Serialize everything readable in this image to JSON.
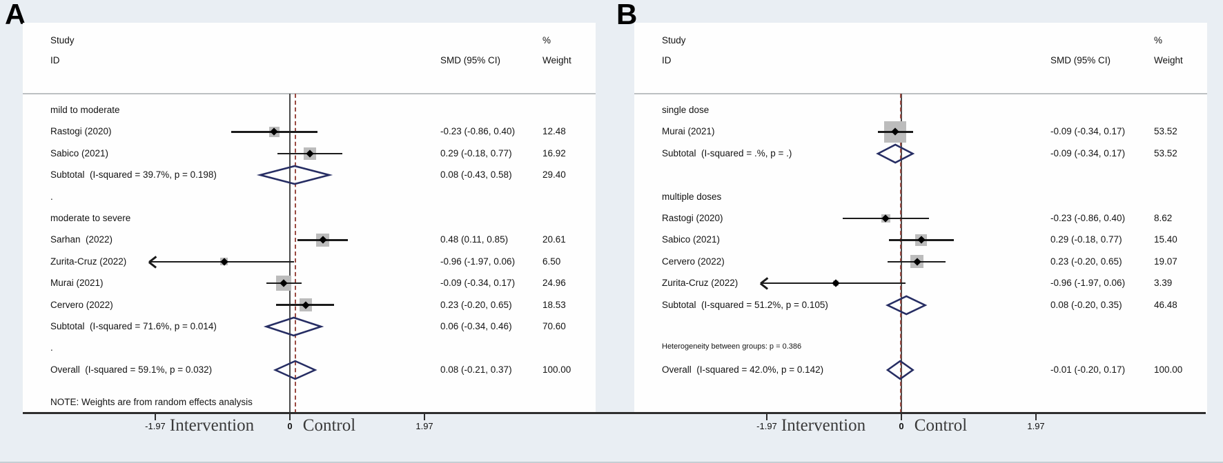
{
  "colors": {
    "background": "#e9eef3",
    "panel_background": "#fefefe",
    "text": "#141414",
    "ci_line": "#1b1b1b",
    "weight_square": "#bcbcbc",
    "diamond_outline": "#262d63",
    "zero_line": "#4a4a4a",
    "reference_dashed_line": "#9a4a42",
    "axis_line": "#2e2e2e"
  },
  "chart_data": [
    {
      "type": "forest",
      "panel_label": "A",
      "columns": {
        "study_line1": "Study",
        "study_line2": "ID",
        "smd": "SMD (95% CI)",
        "percent": "%",
        "weight": "Weight"
      },
      "rows": [
        {
          "type": "group",
          "label": "mild to moderate"
        },
        {
          "type": "study",
          "label": "Rastogi (2020)",
          "smd": -0.23,
          "ci_lo": -0.86,
          "ci_hi": 0.4,
          "smd_text": "-0.23 (-0.86, 0.40)",
          "weight": 12.48,
          "weight_text": "12.48"
        },
        {
          "type": "study",
          "label": "Sabico (2021)",
          "smd": 0.29,
          "ci_lo": -0.18,
          "ci_hi": 0.77,
          "smd_text": "0.29 (-0.18, 0.77)",
          "weight": 16.92,
          "weight_text": "16.92"
        },
        {
          "type": "subtotal",
          "label": "Subtotal  (I-squared = 39.7%, p = 0.198)",
          "smd": 0.08,
          "ci_lo": -0.43,
          "ci_hi": 0.58,
          "smd_text": "0.08 (-0.43, 0.58)",
          "weight_text": "29.40"
        },
        {
          "type": "dot",
          "label": "."
        },
        {
          "type": "group",
          "label": "moderate to severe"
        },
        {
          "type": "study",
          "label": "Sarhan  (2022)",
          "smd": 0.48,
          "ci_lo": 0.11,
          "ci_hi": 0.85,
          "smd_text": "0.48 (0.11, 0.85)",
          "weight": 20.61,
          "weight_text": "20.61"
        },
        {
          "type": "study",
          "label": "Zurita-Cruz (2022)",
          "smd": -0.96,
          "ci_lo": -1.97,
          "ci_hi": 0.06,
          "smd_text": "-0.96 (-1.97, 0.06)",
          "weight": 6.5,
          "weight_text": "6.50",
          "arrow_lo": true
        },
        {
          "type": "study",
          "label": "Murai (2021)",
          "smd": -0.09,
          "ci_lo": -0.34,
          "ci_hi": 0.17,
          "smd_text": "-0.09 (-0.34, 0.17)",
          "weight": 24.96,
          "weight_text": "24.96"
        },
        {
          "type": "study",
          "label": "Cervero (2022)",
          "smd": 0.23,
          "ci_lo": -0.2,
          "ci_hi": 0.65,
          "smd_text": "0.23 (-0.20, 0.65)",
          "weight": 18.53,
          "weight_text": "18.53"
        },
        {
          "type": "subtotal",
          "label": "Subtotal  (I-squared = 71.6%, p = 0.014)",
          "smd": 0.06,
          "ci_lo": -0.34,
          "ci_hi": 0.46,
          "smd_text": "0.06 (-0.34, 0.46)",
          "weight_text": "70.60"
        },
        {
          "type": "dot",
          "label": "."
        },
        {
          "type": "overall",
          "label": "Overall  (I-squared = 59.1%, p = 0.032)",
          "smd": 0.08,
          "ci_lo": -0.21,
          "ci_hi": 0.37,
          "smd_text": "0.08 (-0.21, 0.37)",
          "weight_text": "100.00"
        }
      ],
      "note": "NOTE: Weights are from random effects analysis",
      "x_axis": {
        "ticks": [
          -1.97,
          0,
          1.97
        ],
        "tick_labels": [
          "-1.97",
          "0",
          "1.97"
        ],
        "left_label": "Intervention",
        "right_label": "Control",
        "null_line": 0,
        "overall_reference_line": 0.08
      }
    },
    {
      "type": "forest",
      "panel_label": "B",
      "columns": {
        "study_line1": "Study",
        "study_line2": "ID",
        "smd": "SMD (95% CI)",
        "percent": "%",
        "weight": "Weight"
      },
      "rows": [
        {
          "type": "group",
          "label": "single dose"
        },
        {
          "type": "study",
          "label": "Murai (2021)",
          "smd": -0.09,
          "ci_lo": -0.34,
          "ci_hi": 0.17,
          "smd_text": "-0.09 (-0.34, 0.17)",
          "weight": 53.52,
          "weight_text": "53.52"
        },
        {
          "type": "subtotal",
          "label": "Subtotal  (I-squared = .%, p = .)",
          "smd": -0.09,
          "ci_lo": -0.34,
          "ci_hi": 0.17,
          "smd_text": "-0.09 (-0.34, 0.17)",
          "weight_text": "53.52"
        },
        {
          "type": "blank"
        },
        {
          "type": "group",
          "label": "multiple doses"
        },
        {
          "type": "study",
          "label": "Rastogi (2020)",
          "smd": -0.23,
          "ci_lo": -0.86,
          "ci_hi": 0.4,
          "smd_text": "-0.23 (-0.86, 0.40)",
          "weight": 8.62,
          "weight_text": "8.62"
        },
        {
          "type": "study",
          "label": "Sabico (2021)",
          "smd": 0.29,
          "ci_lo": -0.18,
          "ci_hi": 0.77,
          "smd_text": "0.29 (-0.18, 0.77)",
          "weight": 15.4,
          "weight_text": "15.40"
        },
        {
          "type": "study",
          "label": "Cervero (2022)",
          "smd": 0.23,
          "ci_lo": -0.2,
          "ci_hi": 0.65,
          "smd_text": "0.23 (-0.20, 0.65)",
          "weight": 19.07,
          "weight_text": "19.07"
        },
        {
          "type": "study",
          "label": "Zurita-Cruz (2022)",
          "smd": -0.96,
          "ci_lo": -1.97,
          "ci_hi": 0.06,
          "smd_text": "-0.96 (-1.97, 0.06)",
          "weight": 3.39,
          "weight_text": "3.39",
          "arrow_lo": true
        },
        {
          "type": "subtotal",
          "label": "Subtotal  (I-squared = 51.2%, p = 0.105)",
          "smd": 0.08,
          "ci_lo": -0.2,
          "ci_hi": 0.35,
          "smd_text": "0.08 (-0.20, 0.35)",
          "weight_text": "46.48"
        },
        {
          "type": "blank"
        },
        {
          "type": "small",
          "label": "Heterogeneity between groups: p = 0.386"
        },
        {
          "type": "overall",
          "label": "Overall  (I-squared = 42.0%, p = 0.142)",
          "smd": -0.01,
          "ci_lo": -0.2,
          "ci_hi": 0.17,
          "smd_text": "-0.01 (-0.20, 0.17)",
          "weight_text": "100.00"
        }
      ],
      "x_axis": {
        "ticks": [
          -1.97,
          0,
          1.97
        ],
        "tick_labels": [
          "-1.97",
          "0",
          "1.97"
        ],
        "left_label": "Intervention",
        "right_label": "Control",
        "null_line": 0,
        "overall_reference_line": -0.01
      }
    }
  ]
}
